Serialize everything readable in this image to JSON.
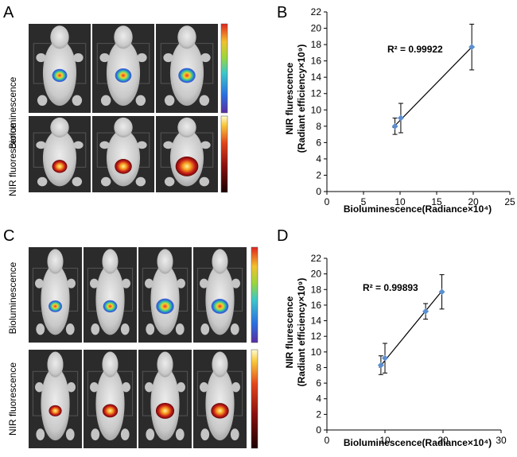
{
  "panel_letters": {
    "a": "A",
    "b": "B",
    "c": "C",
    "d": "D"
  },
  "image_panels": {
    "top": {
      "row_labels": [
        "Bioluminescence",
        "NIR fluorescence"
      ],
      "mouse_count": 3,
      "bio_signal_sizes": [
        0.45,
        0.55,
        0.6
      ],
      "nir_signal_sizes": [
        0.45,
        0.6,
        1.0
      ]
    },
    "bottom": {
      "row_labels": [
        "Bioluminescence",
        "NIR fluorescence"
      ],
      "mouse_count": 4,
      "bio_signal_sizes": [
        0.5,
        0.55,
        0.85,
        0.8
      ],
      "nir_signal_sizes": [
        0.45,
        0.65,
        0.9,
        0.85
      ]
    }
  },
  "colors": {
    "point": "#5b8fd0",
    "line": "#000000",
    "grid_dark": "#3a3a3a",
    "mouse": "#cfcfcf"
  },
  "chart_data": [
    {
      "id": "B",
      "type": "scatter",
      "title": "",
      "xlabel": "Bioluminescence(Radiance×10⁴)",
      "ylabel_line1": "NIR flurescence",
      "ylabel_line2": "(Radiant efficiency×10⁹)",
      "xlim": [
        0,
        25
      ],
      "ylim": [
        0,
        22
      ],
      "xticks": [
        0,
        5,
        10,
        15,
        20,
        25
      ],
      "yticks": [
        0,
        2,
        4,
        6,
        8,
        10,
        12,
        14,
        16,
        18,
        20,
        22
      ],
      "annotation": "R² = 0.99922",
      "points": [
        {
          "x": 9.3,
          "y": 8.0,
          "err": 1.0
        },
        {
          "x": 10.1,
          "y": 9.0,
          "err": 1.8
        },
        {
          "x": 19.8,
          "y": 17.7,
          "err": 2.8
        }
      ],
      "trendline": {
        "x": [
          9.0,
          19.8
        ],
        "y": [
          7.8,
          17.7
        ]
      }
    },
    {
      "id": "D",
      "type": "scatter",
      "title": "",
      "xlabel": "Bioluminescence(Radiance×10⁴)",
      "ylabel_line1": "NIR flurescence",
      "ylabel_line2": "(Radiant efficiency×10⁹)",
      "xlim": [
        0,
        30
      ],
      "ylim": [
        0,
        22
      ],
      "xticks": [
        0,
        10,
        20,
        30
      ],
      "yticks": [
        0,
        2,
        4,
        6,
        8,
        10,
        12,
        14,
        16,
        18,
        20,
        22
      ],
      "annotation": "R² = 0.99893",
      "points": [
        {
          "x": 9.3,
          "y": 8.3,
          "err": 1.2
        },
        {
          "x": 10.0,
          "y": 9.2,
          "err": 1.9
        },
        {
          "x": 17.0,
          "y": 15.2,
          "err": 1.0
        },
        {
          "x": 19.8,
          "y": 17.7,
          "err": 2.2
        }
      ],
      "trendline": {
        "x": [
          9.0,
          19.8
        ],
        "y": [
          8.0,
          17.8
        ]
      }
    }
  ]
}
